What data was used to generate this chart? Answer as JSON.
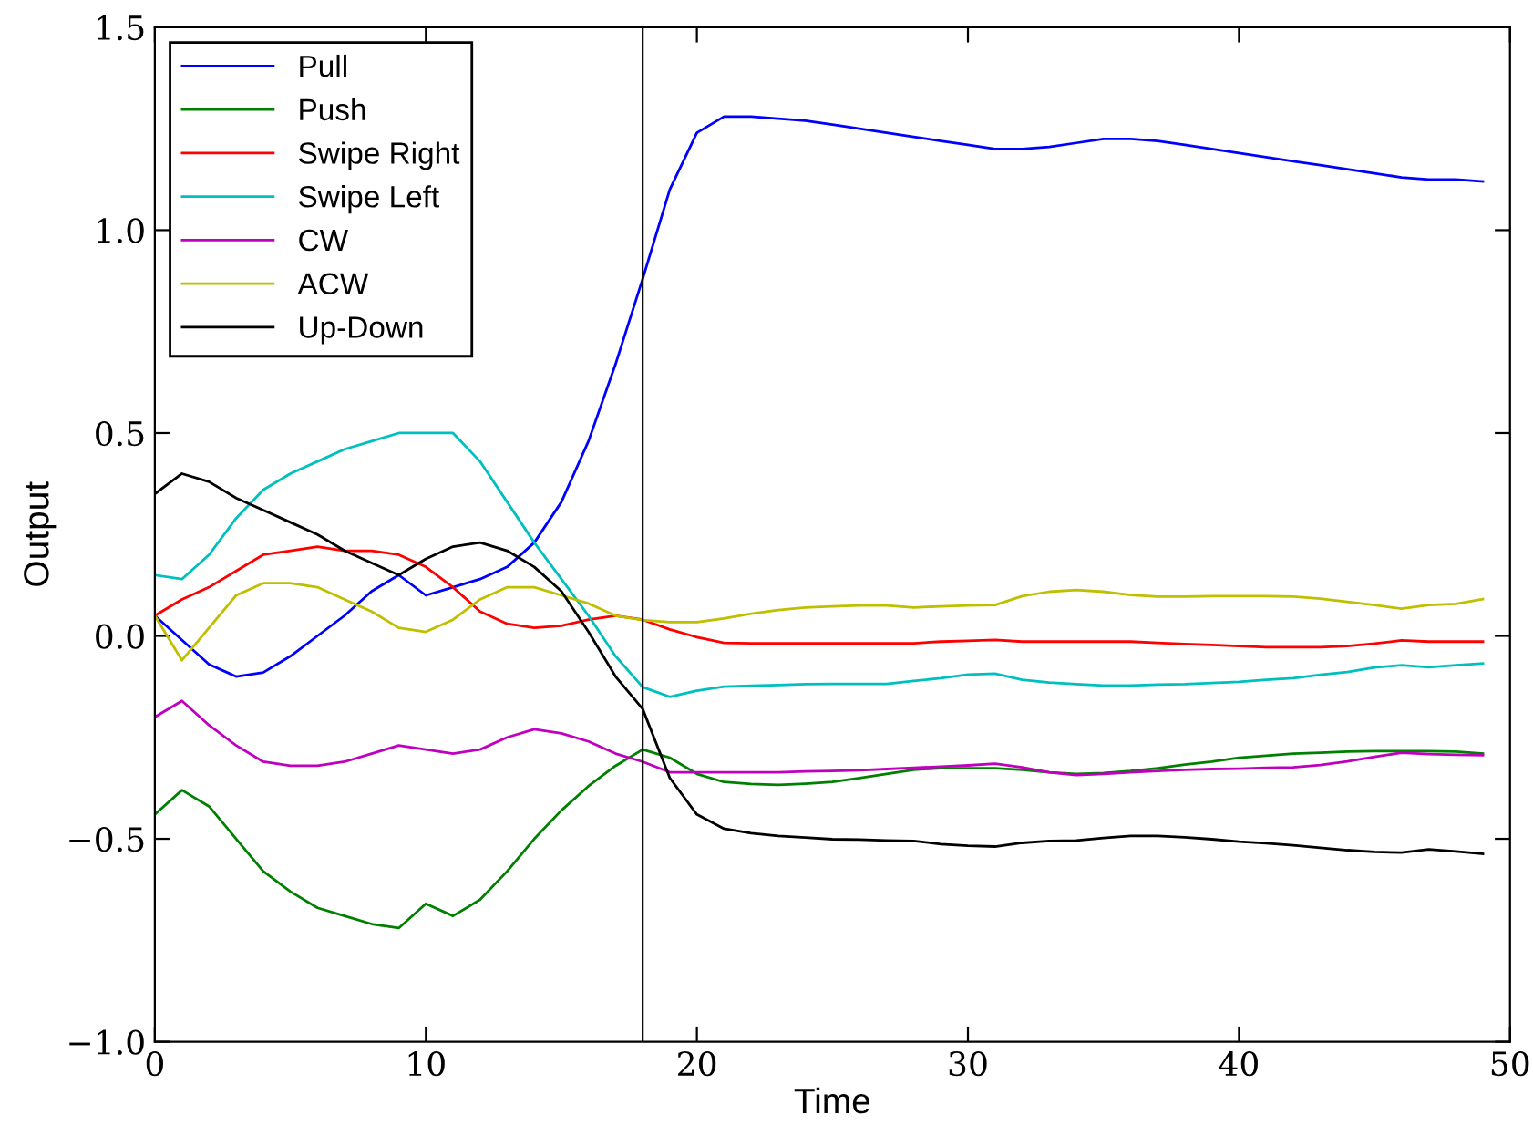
{
  "chart_data": {
    "type": "line",
    "xlabel": "Time",
    "ylabel": "Output",
    "x": [
      0,
      1,
      2,
      3,
      4,
      5,
      6,
      7,
      8,
      9,
      10,
      11,
      12,
      13,
      14,
      15,
      16,
      17,
      18,
      19,
      20,
      21,
      22,
      23,
      24,
      25,
      26,
      27,
      28,
      29,
      30,
      31,
      32,
      33,
      34,
      35,
      36,
      37,
      38,
      39,
      40,
      41,
      42,
      43,
      44,
      45,
      46,
      47,
      48,
      49
    ],
    "series": [
      {
        "name": "Pull",
        "color": "#0000ff",
        "values": [
          0.05,
          -0.01,
          -0.07,
          -0.1,
          -0.09,
          -0.05,
          0.0,
          0.05,
          0.11,
          0.15,
          0.1,
          0.12,
          0.14,
          0.17,
          0.23,
          0.33,
          0.48,
          0.67,
          0.88,
          1.1,
          1.24,
          1.28,
          1.28,
          1.275,
          1.27,
          1.26,
          1.25,
          1.24,
          1.23,
          1.22,
          1.21,
          1.2,
          1.2,
          1.205,
          1.215,
          1.225,
          1.225,
          1.22,
          1.21,
          1.2,
          1.19,
          1.18,
          1.17,
          1.16,
          1.15,
          1.14,
          1.13,
          1.125,
          1.125,
          1.12
        ]
      },
      {
        "name": "Push",
        "color": "#008000",
        "values": [
          -0.44,
          -0.38,
          -0.42,
          -0.5,
          -0.58,
          -0.63,
          -0.67,
          -0.69,
          -0.71,
          -0.72,
          -0.66,
          -0.69,
          -0.65,
          -0.58,
          -0.5,
          -0.43,
          -0.37,
          -0.32,
          -0.28,
          -0.3,
          -0.34,
          -0.36,
          -0.365,
          -0.367,
          -0.364,
          -0.36,
          -0.35,
          -0.34,
          -0.33,
          -0.326,
          -0.326,
          -0.326,
          -0.33,
          -0.336,
          -0.34,
          -0.338,
          -0.333,
          -0.326,
          -0.317,
          -0.31,
          -0.3,
          -0.295,
          -0.29,
          -0.288,
          -0.285,
          -0.284,
          -0.284,
          -0.284,
          -0.285,
          -0.29
        ]
      },
      {
        "name": "Swipe Right",
        "color": "#ff0000",
        "values": [
          0.05,
          0.09,
          0.12,
          0.16,
          0.2,
          0.21,
          0.22,
          0.21,
          0.21,
          0.2,
          0.17,
          0.12,
          0.06,
          0.03,
          0.02,
          0.025,
          0.04,
          0.05,
          0.04,
          0.016,
          -0.003,
          -0.017,
          -0.018,
          -0.018,
          -0.018,
          -0.018,
          -0.018,
          -0.018,
          -0.018,
          -0.014,
          -0.012,
          -0.01,
          -0.014,
          -0.014,
          -0.014,
          -0.014,
          -0.014,
          -0.017,
          -0.02,
          -0.022,
          -0.025,
          -0.028,
          -0.028,
          -0.028,
          -0.025,
          -0.019,
          -0.011,
          -0.014,
          -0.014,
          -0.014
        ]
      },
      {
        "name": "Swipe Left",
        "color": "#00bfbf",
        "values": [
          0.15,
          0.14,
          0.2,
          0.29,
          0.36,
          0.4,
          0.43,
          0.46,
          0.48,
          0.5,
          0.5,
          0.5,
          0.43,
          0.33,
          0.23,
          0.14,
          0.05,
          -0.05,
          -0.126,
          -0.15,
          -0.135,
          -0.125,
          -0.123,
          -0.121,
          -0.119,
          -0.118,
          -0.118,
          -0.118,
          -0.111,
          -0.104,
          -0.095,
          -0.093,
          -0.108,
          -0.115,
          -0.119,
          -0.122,
          -0.122,
          -0.12,
          -0.119,
          -0.116,
          -0.113,
          -0.108,
          -0.104,
          -0.096,
          -0.089,
          -0.078,
          -0.072,
          -0.077,
          -0.072,
          -0.068
        ]
      },
      {
        "name": "CW",
        "color": "#bf00bf",
        "values": [
          -0.2,
          -0.16,
          -0.22,
          -0.27,
          -0.31,
          -0.32,
          -0.32,
          -0.31,
          -0.29,
          -0.27,
          -0.28,
          -0.29,
          -0.28,
          -0.25,
          -0.23,
          -0.24,
          -0.26,
          -0.29,
          -0.31,
          -0.336,
          -0.336,
          -0.336,
          -0.336,
          -0.336,
          -0.334,
          -0.333,
          -0.331,
          -0.328,
          -0.325,
          -0.322,
          -0.319,
          -0.315,
          -0.324,
          -0.336,
          -0.343,
          -0.34,
          -0.336,
          -0.333,
          -0.33,
          -0.328,
          -0.327,
          -0.325,
          -0.324,
          -0.318,
          -0.309,
          -0.298,
          -0.288,
          -0.291,
          -0.293,
          -0.294
        ]
      },
      {
        "name": "ACW",
        "color": "#bfbf00",
        "values": [
          0.05,
          -0.06,
          0.02,
          0.1,
          0.13,
          0.13,
          0.12,
          0.09,
          0.06,
          0.02,
          0.01,
          0.04,
          0.09,
          0.12,
          0.12,
          0.1,
          0.08,
          0.05,
          0.039,
          0.034,
          0.034,
          0.043,
          0.055,
          0.064,
          0.07,
          0.073,
          0.075,
          0.075,
          0.07,
          0.073,
          0.075,
          0.076,
          0.098,
          0.109,
          0.113,
          0.109,
          0.101,
          0.097,
          0.097,
          0.098,
          0.098,
          0.098,
          0.097,
          0.092,
          0.084,
          0.076,
          0.067,
          0.076,
          0.079,
          0.091
        ]
      },
      {
        "name": "Up-Down",
        "color": "#000000",
        "values": [
          0.35,
          0.4,
          0.38,
          0.34,
          0.31,
          0.28,
          0.25,
          0.21,
          0.18,
          0.15,
          0.19,
          0.22,
          0.23,
          0.21,
          0.17,
          0.11,
          0.01,
          -0.1,
          -0.18,
          -0.35,
          -0.44,
          -0.475,
          -0.486,
          -0.493,
          -0.497,
          -0.501,
          -0.502,
          -0.504,
          -0.505,
          -0.513,
          -0.517,
          -0.519,
          -0.51,
          -0.505,
          -0.504,
          -0.498,
          -0.493,
          -0.493,
          -0.496,
          -0.501,
          -0.507,
          -0.511,
          -0.516,
          -0.522,
          -0.528,
          -0.532,
          -0.534,
          -0.526,
          -0.531,
          -0.537
        ]
      }
    ],
    "xlim": [
      0,
      50
    ],
    "xticks": [
      0,
      10,
      20,
      30,
      40,
      50
    ],
    "ylim": [
      -1.0,
      1.5
    ],
    "yticks": [
      {
        "value": -1.0,
        "label": "−1.0"
      },
      {
        "value": -0.5,
        "label": "−0.5"
      },
      {
        "value": 0,
        "label": "0.0"
      },
      0.5,
      {
        "value": 1,
        "label": "1.0"
      },
      1.5
    ],
    "ref_lines": [
      {
        "axis": "x",
        "value": 18,
        "label": null,
        "color": "#000000"
      }
    ],
    "grid": false,
    "legend": "top left",
    "marker": "none",
    "line_style": "solid"
  }
}
